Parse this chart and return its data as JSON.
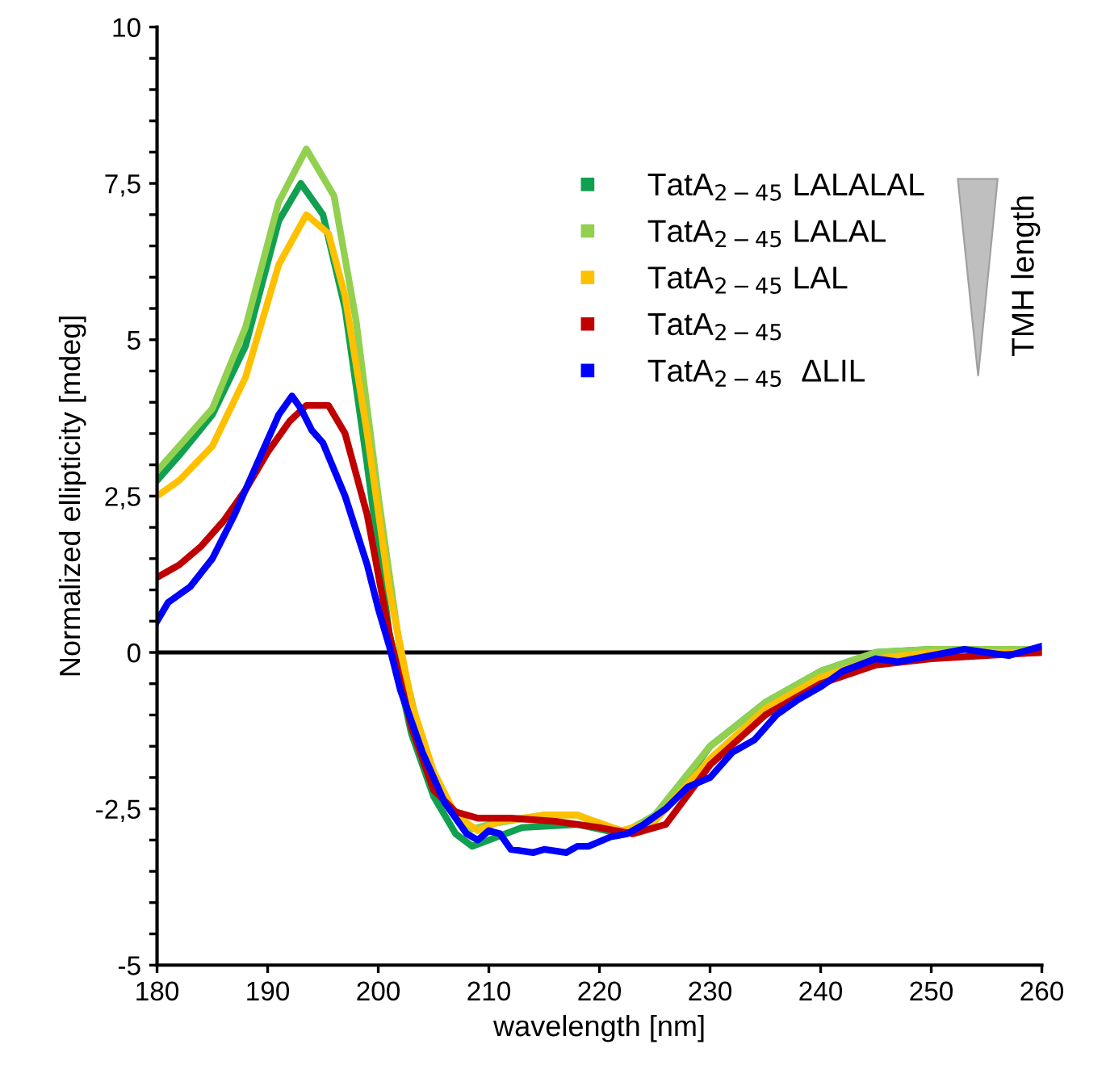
{
  "chart_data": {
    "type": "line",
    "xlabel": "wavelength [nm]",
    "ylabel": "Normalized ellipticity [mdeg]",
    "xlim": [
      180,
      260
    ],
    "xticks": [
      180,
      190,
      200,
      210,
      220,
      230,
      240,
      250,
      260
    ],
    "ylim": [
      -5,
      10
    ],
    "yticks": [
      {
        "value": -5,
        "label": "-5"
      },
      {
        "value": -4.5,
        "label": null
      },
      {
        "value": -4,
        "label": null
      },
      {
        "value": -3.5,
        "label": null
      },
      {
        "value": -3,
        "label": null
      },
      {
        "value": -2.5,
        "label": "-2,5"
      },
      {
        "value": -2,
        "label": null
      },
      {
        "value": -1.5,
        "label": null
      },
      {
        "value": -1,
        "label": null
      },
      {
        "value": -0.5,
        "label": null
      },
      {
        "value": 0,
        "label": "0"
      },
      {
        "value": 0.5,
        "label": null
      },
      {
        "value": 1,
        "label": null
      },
      {
        "value": 1.5,
        "label": null
      },
      {
        "value": 2,
        "label": null
      },
      {
        "value": 2.5,
        "label": "2,5"
      },
      {
        "value": 3,
        "label": null
      },
      {
        "value": 3.5,
        "label": null
      },
      {
        "value": 4,
        "label": null
      },
      {
        "value": 4.5,
        "label": null
      },
      {
        "value": 5,
        "label": "5"
      },
      {
        "value": 5.5,
        "label": null
      },
      {
        "value": 6,
        "label": null
      },
      {
        "value": 6.5,
        "label": null
      },
      {
        "value": 7,
        "label": null
      },
      {
        "value": 7.5,
        "label": "7,5"
      },
      {
        "value": 8,
        "label": null
      },
      {
        "value": 8.5,
        "label": null
      },
      {
        "value": 9,
        "label": null
      },
      {
        "value": 9.5,
        "label": null
      },
      {
        "value": 10,
        "label": "10"
      }
    ],
    "grid": false,
    "legend": "right",
    "marker": "none",
    "line_style": "solid",
    "ref_lines": [
      {
        "axis": "y",
        "value": 0,
        "color": "#000000"
      }
    ],
    "annotations": [
      "TMH length"
    ],
    "series": [
      {
        "name": "TatA$_{2−45}$ LALALAL",
        "color": "#10a050",
        "x": [
          180,
          182,
          185,
          188,
          191,
          193,
          195,
          197,
          199,
          201,
          203,
          205,
          207,
          208.5,
          210,
          213,
          218,
          222,
          225,
          230,
          235,
          240,
          245,
          250,
          260
        ],
        "values": [
          2.75,
          3.15,
          3.8,
          4.9,
          6.9,
          7.5,
          7.0,
          5.5,
          3.0,
          0.3,
          -1.3,
          -2.3,
          -2.9,
          -3.1,
          -3.0,
          -2.8,
          -2.75,
          -2.9,
          -2.7,
          -1.5,
          -0.8,
          -0.3,
          0,
          0.05,
          0.05
        ]
      },
      {
        "name": "TatA$_{2−45}$ LALAL",
        "color": "#92d050",
        "x": [
          180,
          182,
          185,
          188,
          191,
          193.5,
          196,
          198,
          200,
          202,
          204,
          206,
          208,
          210,
          215,
          218,
          222,
          225,
          230,
          235,
          240,
          245,
          250,
          255,
          260
        ],
        "values": [
          2.9,
          3.3,
          3.9,
          5.2,
          7.2,
          8.05,
          7.3,
          5.3,
          2.5,
          0,
          -1.5,
          -2.4,
          -2.85,
          -2.75,
          -2.6,
          -2.6,
          -2.9,
          -2.6,
          -1.5,
          -0.8,
          -0.3,
          0,
          0.05,
          0.05,
          0.05
        ]
      },
      {
        "name": "TatA$_{2−45}$ LAL",
        "color": "#ffc000",
        "x": [
          180,
          182,
          185,
          188,
          191,
          193.5,
          195.5,
          197,
          199,
          201,
          203,
          205,
          207,
          209,
          211,
          215,
          218,
          222,
          225,
          230,
          235,
          240,
          245,
          250,
          260
        ],
        "values": [
          2.5,
          2.75,
          3.3,
          4.4,
          6.2,
          7.0,
          6.7,
          5.7,
          3.5,
          1.0,
          -0.8,
          -1.9,
          -2.6,
          -2.85,
          -2.7,
          -2.6,
          -2.6,
          -2.85,
          -2.7,
          -1.7,
          -0.9,
          -0.4,
          -0.1,
          0,
          0
        ]
      },
      {
        "name": "TatA$_{2−45}$",
        "color": "#c00000",
        "x": [
          180,
          182,
          184,
          186,
          188,
          190,
          192,
          193.5,
          195.5,
          197,
          199,
          201,
          203,
          205,
          207,
          209,
          212,
          216,
          220,
          223,
          226,
          230,
          235,
          240,
          245,
          250,
          255,
          260
        ],
        "values": [
          1.2,
          1.4,
          1.7,
          2.1,
          2.6,
          3.2,
          3.7,
          3.95,
          3.95,
          3.5,
          2.2,
          0.3,
          -1.2,
          -2.2,
          -2.55,
          -2.65,
          -2.65,
          -2.7,
          -2.8,
          -2.9,
          -2.75,
          -1.8,
          -1.0,
          -0.5,
          -0.2,
          -0.1,
          -0.05,
          0
        ]
      },
      {
        "name": "TatA$_{2−45}$  ΔLIL",
        "color": "#0000ff",
        "x": [
          180,
          181,
          183,
          185,
          187,
          189,
          191,
          192.2,
          193,
          194,
          195,
          197,
          199,
          200,
          201,
          202,
          204,
          206,
          208,
          209,
          210,
          211,
          212,
          214,
          215,
          217,
          218,
          219,
          221,
          222.5,
          224,
          226,
          228,
          230,
          232,
          234,
          236,
          238,
          240,
          242,
          245,
          247,
          250,
          253,
          255,
          257,
          260
        ],
        "values": [
          0.5,
          0.8,
          1.05,
          1.5,
          2.2,
          3.0,
          3.8,
          4.1,
          3.9,
          3.55,
          3.35,
          2.5,
          1.4,
          0.7,
          0.1,
          -0.6,
          -1.6,
          -2.4,
          -2.9,
          -3.0,
          -2.85,
          -2.9,
          -3.15,
          -3.2,
          -3.15,
          -3.2,
          -3.1,
          -3.1,
          -2.95,
          -2.9,
          -2.75,
          -2.5,
          -2.15,
          -2.0,
          -1.6,
          -1.4,
          -1.0,
          -0.75,
          -0.55,
          -0.3,
          -0.1,
          -0.15,
          -0.05,
          0.05,
          0.0,
          -0.05,
          0.1
        ]
      }
    ]
  }
}
